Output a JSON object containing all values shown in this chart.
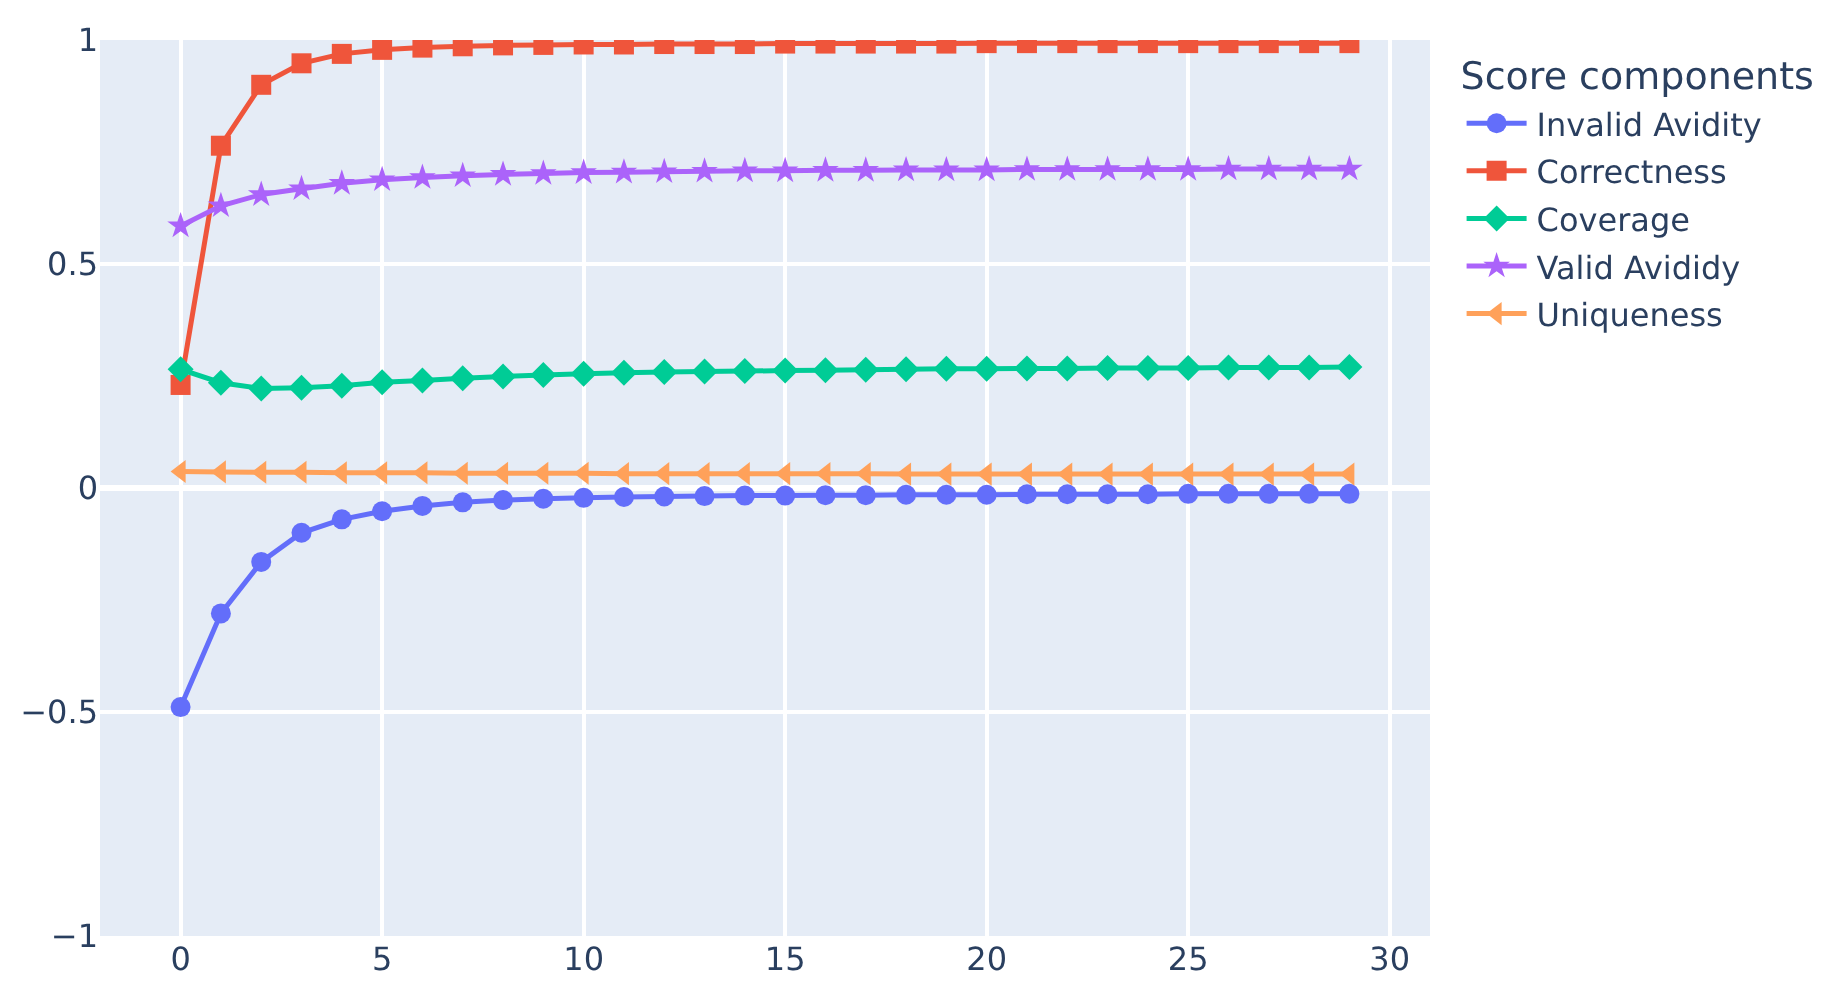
{
  "chart_data": {
    "type": "line",
    "legend_title": "Score components",
    "legend": "top right",
    "grid": true,
    "x": [
      0,
      1,
      2,
      3,
      4,
      5,
      6,
      7,
      8,
      9,
      10,
      11,
      12,
      13,
      14,
      15,
      16,
      17,
      18,
      19,
      20,
      21,
      22,
      23,
      24,
      25,
      26,
      27,
      28,
      29
    ],
    "xlim": [
      -2,
      31
    ],
    "xticks": [
      0,
      5,
      10,
      15,
      20,
      25,
      30
    ],
    "ylim": [
      -1,
      1
    ],
    "yticks": [
      {
        "value": -1,
        "label": "−1"
      },
      {
        "value": -0.5,
        "label": "−0.5"
      },
      0,
      0.5,
      1
    ],
    "series": [
      {
        "name": "Invalid Avidity",
        "color": "#636efa",
        "marker": "circle",
        "values": [
          -0.489,
          -0.28,
          -0.165,
          -0.1,
          -0.07,
          -0.052,
          -0.04,
          -0.032,
          -0.027,
          -0.024,
          -0.022,
          -0.02,
          -0.019,
          -0.018,
          -0.017,
          -0.017,
          -0.016,
          -0.016,
          -0.015,
          -0.015,
          -0.015,
          -0.014,
          -0.014,
          -0.014,
          -0.014,
          -0.013,
          -0.013,
          -0.013,
          -0.013,
          -0.013
        ]
      },
      {
        "name": "Correctness",
        "color": "#ef553b",
        "marker": "square",
        "values": [
          0.23,
          0.764,
          0.9,
          0.948,
          0.969,
          0.978,
          0.983,
          0.986,
          0.988,
          0.989,
          0.99,
          0.99,
          0.991,
          0.991,
          0.991,
          0.992,
          0.992,
          0.992,
          0.992,
          0.992,
          0.993,
          0.993,
          0.993,
          0.993,
          0.993,
          0.993,
          0.993,
          0.993,
          0.993,
          0.993
        ]
      },
      {
        "name": "Coverage",
        "color": "#00cc96",
        "marker": "diamond",
        "values": [
          0.265,
          0.235,
          0.222,
          0.224,
          0.228,
          0.236,
          0.24,
          0.245,
          0.249,
          0.252,
          0.255,
          0.257,
          0.259,
          0.26,
          0.261,
          0.262,
          0.263,
          0.264,
          0.265,
          0.266,
          0.266,
          0.267,
          0.267,
          0.268,
          0.268,
          0.268,
          0.269,
          0.269,
          0.269,
          0.27
        ]
      },
      {
        "name": "Valid Avididy",
        "color": "#ab63fa",
        "marker": "star",
        "values": [
          0.585,
          0.63,
          0.655,
          0.668,
          0.68,
          0.688,
          0.693,
          0.697,
          0.7,
          0.702,
          0.704,
          0.705,
          0.706,
          0.707,
          0.708,
          0.708,
          0.709,
          0.709,
          0.71,
          0.71,
          0.71,
          0.711,
          0.711,
          0.711,
          0.711,
          0.711,
          0.712,
          0.712,
          0.712,
          0.712
        ]
      },
      {
        "name": "Uniqueness",
        "color": "#ffa15a",
        "marker": "triangle-left",
        "values": [
          0.037,
          0.036,
          0.035,
          0.035,
          0.034,
          0.034,
          0.034,
          0.033,
          0.033,
          0.033,
          0.033,
          0.032,
          0.032,
          0.032,
          0.032,
          0.032,
          0.032,
          0.032,
          0.031,
          0.031,
          0.031,
          0.031,
          0.031,
          0.031,
          0.031,
          0.031,
          0.031,
          0.031,
          0.031,
          0.031
        ]
      }
    ]
  }
}
